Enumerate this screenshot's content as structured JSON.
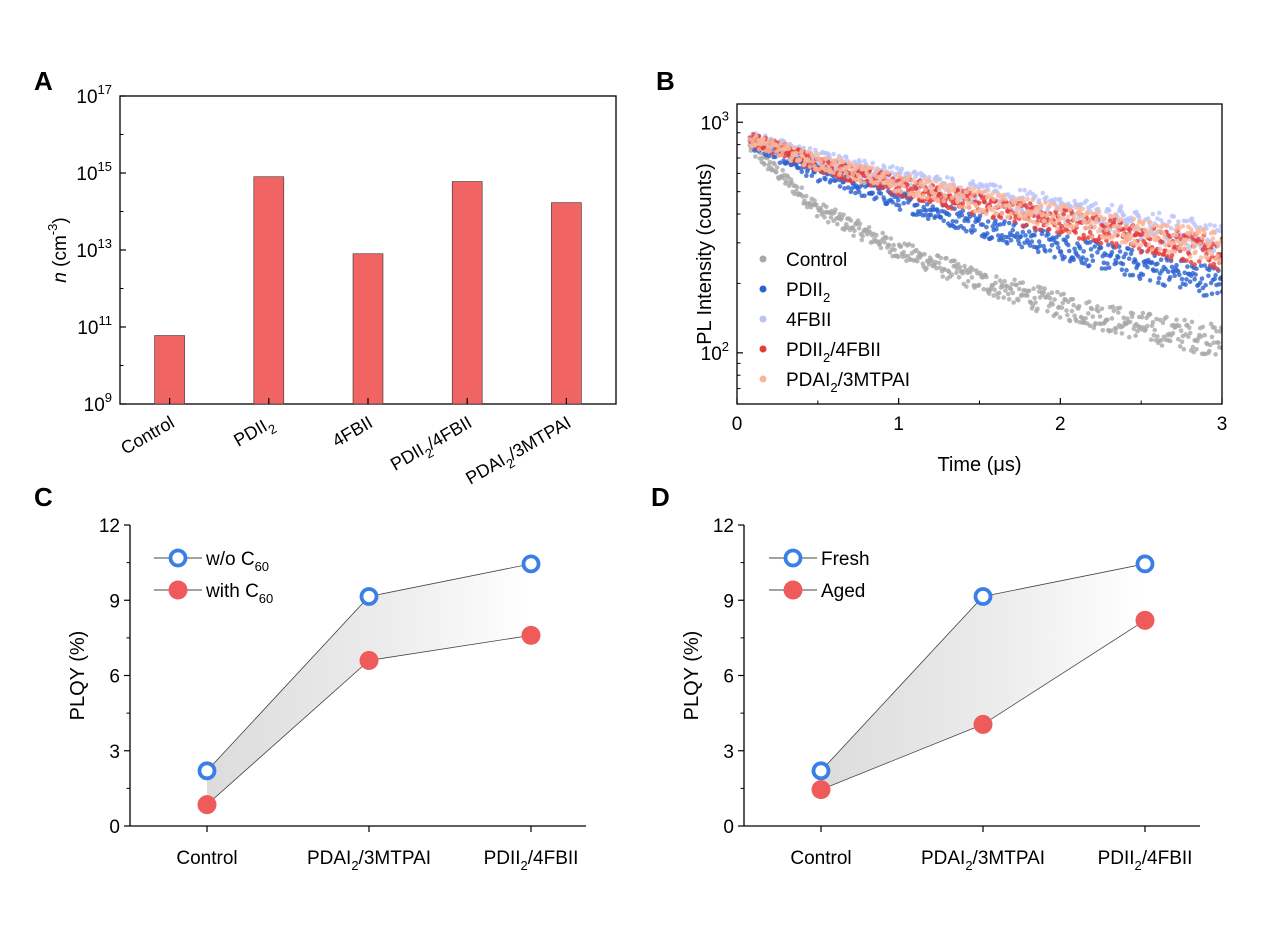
{
  "chart_data": [
    {
      "panel": "A",
      "type": "bar",
      "ylabel": {
        "italic": "n",
        "text": " (cm",
        "sup": "-3",
        "end": ")"
      },
      "yscale": "log",
      "ylim": [
        1000000000.0,
        1e+17
      ],
      "yticks": [
        {
          "base": "10",
          "exp": "9"
        },
        {
          "base": "10",
          "exp": "11"
        },
        {
          "base": "10",
          "exp": "13"
        },
        {
          "base": "10",
          "exp": "15"
        },
        {
          "base": "10",
          "exp": "17"
        }
      ],
      "categories": [
        {
          "parts": [
            {
              "t": "Control"
            }
          ]
        },
        {
          "parts": [
            {
              "t": "PDII"
            },
            {
              "t": "2",
              "sub": true
            }
          ]
        },
        {
          "parts": [
            {
              "t": "4FBII"
            }
          ]
        },
        {
          "parts": [
            {
              "t": "PDII"
            },
            {
              "t": "2",
              "sub": true
            },
            {
              "t": "/4FBII"
            }
          ]
        },
        {
          "parts": [
            {
              "t": "PDAI"
            },
            {
              "t": "2",
              "sub": true
            },
            {
              "t": "/3MTPAI"
            }
          ]
        }
      ],
      "values": [
        60000000000.0,
        800000000000000.0,
        8000000000000.0,
        600000000000000.0,
        170000000000000.0
      ],
      "bar_color": "#f06464"
    },
    {
      "panel": "B",
      "type": "scatter",
      "xlabel": {
        "text": "Time (",
        "mu": "μ",
        "end": "s)"
      },
      "ylabel": "PL Intensity (counts)",
      "xlim": [
        0,
        3
      ],
      "xticks": [
        "0",
        "1",
        "2",
        "3"
      ],
      "yscale": "log",
      "ylim": [
        60,
        1200
      ],
      "yticks": [
        {
          "base": "10",
          "exp": "2",
          "value": 100
        },
        {
          "base": "10",
          "exp": "3",
          "value": 1000
        }
      ],
      "series": [
        {
          "name": {
            "parts": [
              {
                "t": "Control"
              }
            ]
          },
          "color": "#a8a8a8",
          "points": [
            [
              0.08,
              780
            ],
            [
              0.5,
              420
            ],
            [
              1.0,
              280
            ],
            [
              1.5,
              205
            ],
            [
              2.0,
              160
            ],
            [
              2.5,
              130
            ],
            [
              3.0,
              112
            ]
          ]
        },
        {
          "name": {
            "parts": [
              {
                "t": "PDII"
              },
              {
                "t": "2",
                "sub": true
              }
            ]
          },
          "color": "#2a62d0",
          "points": [
            [
              0.08,
              820
            ],
            [
              0.5,
              600
            ],
            [
              1.0,
              460
            ],
            [
              1.5,
              360
            ],
            [
              2.0,
              290
            ],
            [
              2.5,
              240
            ],
            [
              3.0,
              200
            ]
          ]
        },
        {
          "name": {
            "parts": [
              {
                "t": "4FBII"
              }
            ]
          },
          "color": "#b9c3fa",
          "points": [
            [
              0.08,
              860
            ],
            [
              0.5,
              700
            ],
            [
              1.0,
              580
            ],
            [
              1.5,
              490
            ],
            [
              2.0,
              420
            ],
            [
              2.5,
              360
            ],
            [
              3.0,
              310
            ]
          ]
        },
        {
          "name": {
            "parts": [
              {
                "t": "PDII"
              },
              {
                "t": "2",
                "sub": true
              },
              {
                "t": "/4FBII"
              }
            ]
          },
          "color": "#e63b3b",
          "points": [
            [
              0.08,
              850
            ],
            [
              0.5,
              660
            ],
            [
              1.0,
              530
            ],
            [
              1.5,
              440
            ],
            [
              2.0,
              370
            ],
            [
              2.5,
              315
            ],
            [
              3.0,
              265
            ]
          ]
        },
        {
          "name": {
            "parts": [
              {
                "t": "PDAI"
              },
              {
                "t": "2",
                "sub": true
              },
              {
                "t": "/3MTPAI"
              }
            ]
          },
          "color": "#f9b59a",
          "points": [
            [
              0.08,
              840
            ],
            [
              0.5,
              670
            ],
            [
              1.0,
              545
            ],
            [
              1.5,
              455
            ],
            [
              2.0,
              385
            ],
            [
              2.5,
              330
            ],
            [
              3.0,
              285
            ]
          ]
        }
      ]
    },
    {
      "panel": "C",
      "type": "line",
      "ylabel": "PLQY (%)",
      "ylim": [
        0,
        12
      ],
      "yticks": [
        "0",
        "3",
        "6",
        "9",
        "12"
      ],
      "categories": [
        {
          "parts": [
            {
              "t": "Control"
            }
          ]
        },
        {
          "parts": [
            {
              "t": "PDAI"
            },
            {
              "t": "2",
              "sub": true
            },
            {
              "t": "/3MTPAI"
            }
          ]
        },
        {
          "parts": [
            {
              "t": "PDII"
            },
            {
              "t": "2",
              "sub": true
            },
            {
              "t": "/4FBII"
            }
          ]
        }
      ],
      "series": [
        {
          "name": {
            "parts": [
              {
                "t": "w/o C"
              },
              {
                "t": "60",
                "sub": true
              }
            ]
          },
          "marker": "open",
          "color": "#3a7ee8",
          "values": [
            2.2,
            9.15,
            10.45
          ]
        },
        {
          "name": {
            "parts": [
              {
                "t": "with C"
              },
              {
                "t": "60",
                "sub": true
              }
            ]
          },
          "marker": "filled",
          "color": "#ef5b5b",
          "values": [
            0.85,
            6.6,
            7.6
          ]
        }
      ]
    },
    {
      "panel": "D",
      "type": "line",
      "ylabel": "PLQY (%)",
      "ylim": [
        0,
        12
      ],
      "yticks": [
        "0",
        "3",
        "6",
        "9",
        "12"
      ],
      "categories": [
        {
          "parts": [
            {
              "t": "Control"
            }
          ]
        },
        {
          "parts": [
            {
              "t": "PDAI"
            },
            {
              "t": "2",
              "sub": true
            },
            {
              "t": "/3MTPAI"
            }
          ]
        },
        {
          "parts": [
            {
              "t": "PDII"
            },
            {
              "t": "2",
              "sub": true
            },
            {
              "t": "/4FBII"
            }
          ]
        }
      ],
      "series": [
        {
          "name": {
            "parts": [
              {
                "t": "Fresh"
              }
            ]
          },
          "marker": "open",
          "color": "#3a7ee8",
          "values": [
            2.2,
            9.15,
            10.45
          ]
        },
        {
          "name": {
            "parts": [
              {
                "t": "Aged"
              }
            ]
          },
          "marker": "filled",
          "color": "#ef5b5b",
          "values": [
            1.45,
            4.05,
            8.2
          ]
        }
      ]
    }
  ]
}
